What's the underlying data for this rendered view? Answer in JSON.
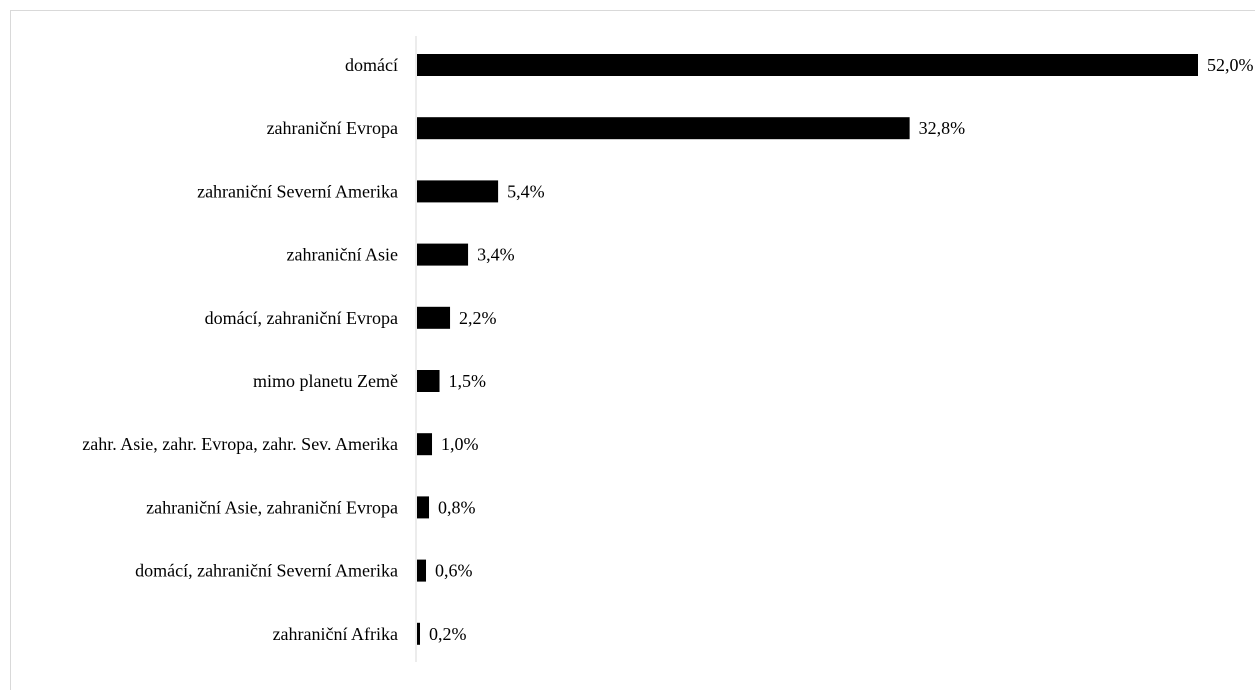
{
  "chart_data": {
    "type": "bar",
    "orientation": "horizontal",
    "categories": [
      "domácí",
      "zahraniční Evropa",
      "zahraniční Severní Amerika",
      "zahraniční Asie",
      "domácí, zahraniční Evropa",
      "mimo planetu Země",
      "zahr. Asie, zahr. Evropa, zahr. Sev. Amerika",
      "zahraniční Asie, zahraniční Evropa",
      "domácí, zahraniční Severní Amerika",
      "zahraniční Afrika"
    ],
    "values": [
      52.0,
      32.8,
      5.4,
      3.4,
      2.2,
      1.5,
      1.0,
      0.8,
      0.6,
      0.2
    ],
    "value_labels": [
      "52,0%",
      "32,8%",
      "5,4%",
      "3,4%",
      "2,2%",
      "1,5%",
      "1,0%",
      "0,8%",
      "0,6%",
      "0,2%"
    ],
    "xlim": [
      0,
      52.0
    ],
    "grid": false,
    "bar_color": "#000000"
  }
}
